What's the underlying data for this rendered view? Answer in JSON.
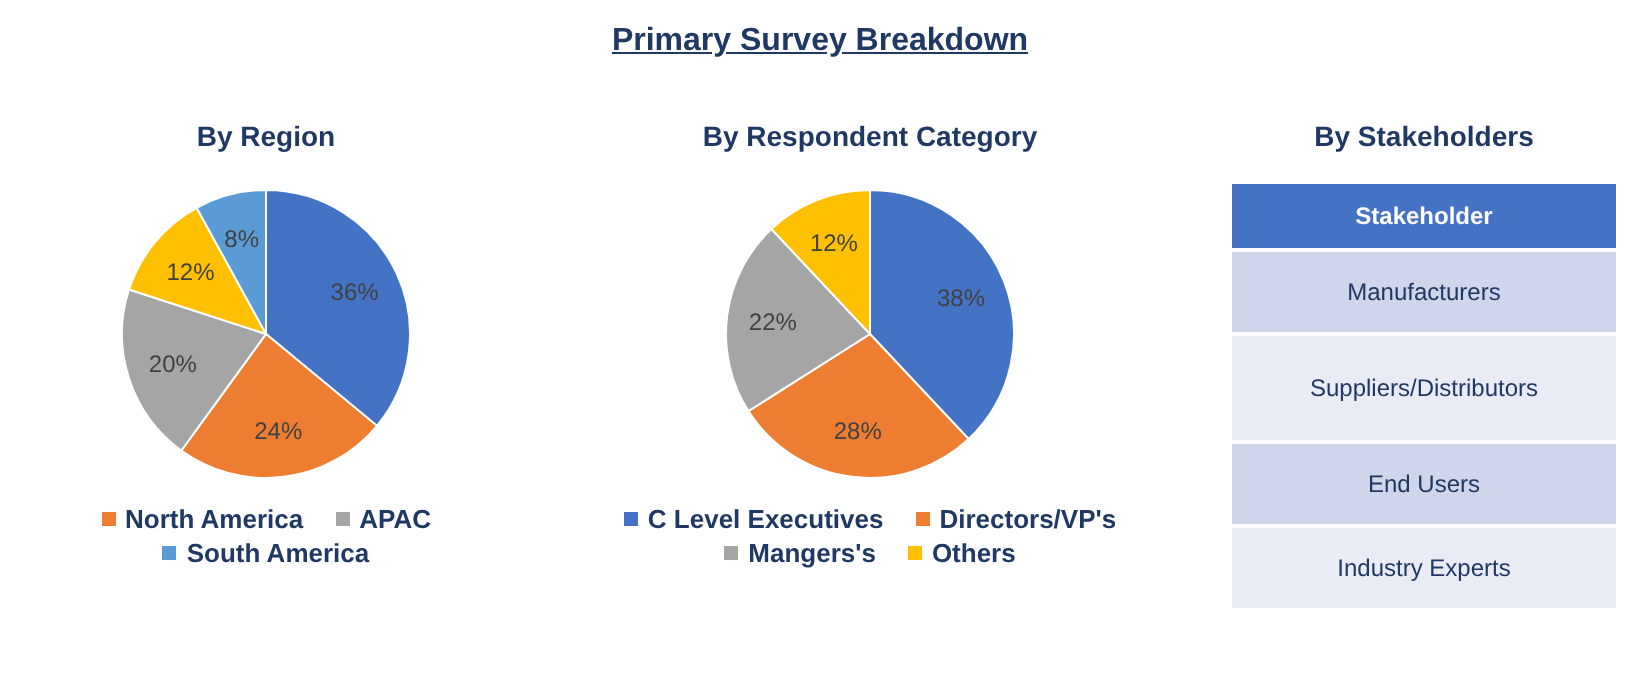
{
  "chart_data": [
    {
      "type": "other",
      "title": "Primary Survey Breakdown"
    },
    {
      "type": "pie",
      "title": "By Region",
      "categories": [
        null,
        "North America",
        "APAC",
        null,
        "South America"
      ],
      "values": [
        36,
        24,
        20,
        12,
        8
      ],
      "value_labels": [
        "36%",
        "24%",
        "20%",
        "12%",
        "8%"
      ],
      "colors": [
        "#4472c4",
        "#ed7d31",
        "#a5a5a5",
        "#ffc000",
        "#5b9bd5"
      ],
      "legend": "bottom"
    },
    {
      "type": "pie",
      "title": "By Respondent Category",
      "categories": [
        "C Level Executives",
        "Directors/VP's",
        "Mangers's",
        "Others"
      ],
      "values": [
        38,
        28,
        22,
        12
      ],
      "value_labels": [
        "38%",
        "28%",
        "22%",
        "12%"
      ],
      "colors": [
        "#4472c4",
        "#ed7d31",
        "#a5a5a5",
        "#ffc000"
      ],
      "legend": "bottom"
    },
    {
      "type": "other",
      "title": "By Stakeholders",
      "categories": [
        "Stakeholder"
      ],
      "y_categories": [
        "Manufacturers",
        "Suppliers/Distributors",
        "End Users",
        "Industry Experts"
      ]
    }
  ]
}
